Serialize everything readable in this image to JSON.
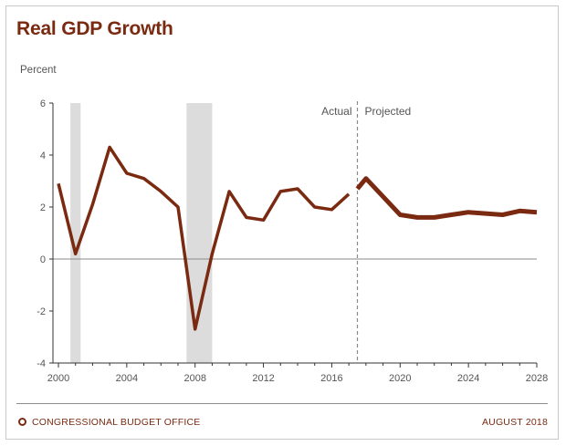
{
  "header": {
    "title": "Real GDP Growth"
  },
  "footer": {
    "org": "CONGRESSIONAL BUDGET OFFICE",
    "date": "AUGUST 2018",
    "logo_icon": "cbo-logo-icon"
  },
  "colors": {
    "line": "#7a2a10",
    "recession": "#dcdcdc",
    "zero_line": "#8a8a8a",
    "text": "#555555"
  },
  "chart_data": {
    "type": "line",
    "ylabel": "Percent",
    "xlim": [
      2000,
      2028
    ],
    "ylim": [
      -4,
      6
    ],
    "xticks": [
      2000,
      2004,
      2008,
      2012,
      2016,
      2020,
      2024,
      2028
    ],
    "yticks": [
      -4,
      -2,
      0,
      2,
      4,
      6
    ],
    "divider": {
      "x": 2017.5,
      "left_label": "Actual",
      "right_label": "Projected"
    },
    "shaded_periods": [
      [
        2000.7,
        2001.3
      ],
      [
        2007.5,
        2009.0
      ]
    ],
    "series": [
      {
        "segment": "actual",
        "x": [
          2000,
          2001,
          2002,
          2003,
          2004,
          2005,
          2006,
          2007,
          2008,
          2009,
          2010,
          2011,
          2012,
          2013,
          2014,
          2015,
          2016,
          2017
        ],
        "y": [
          2.9,
          0.2,
          2.1,
          4.3,
          3.3,
          3.1,
          2.6,
          2.0,
          -2.7,
          0.2,
          2.6,
          1.6,
          1.5,
          2.6,
          2.7,
          2.0,
          1.9,
          2.5
        ]
      },
      {
        "segment": "projected",
        "x": [
          2017.5,
          2018,
          2019,
          2020,
          2021,
          2022,
          2023,
          2024,
          2025,
          2026,
          2027,
          2028
        ],
        "y": [
          2.7,
          3.1,
          2.4,
          1.7,
          1.6,
          1.6,
          1.7,
          1.8,
          1.75,
          1.7,
          1.85,
          1.8
        ]
      }
    ]
  }
}
